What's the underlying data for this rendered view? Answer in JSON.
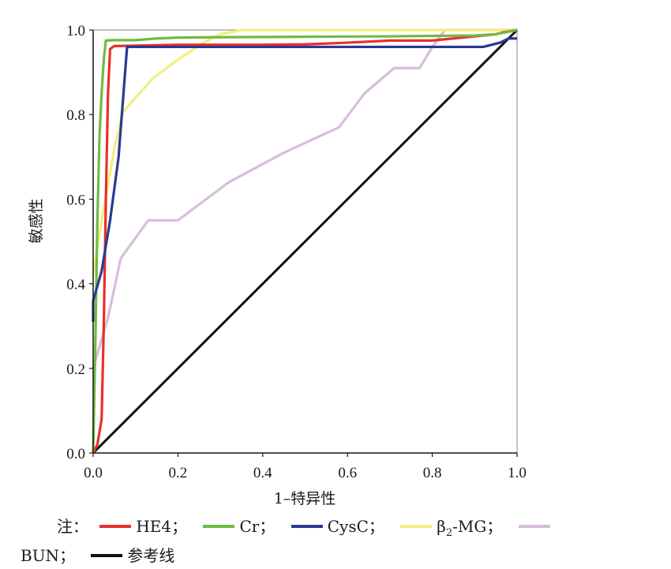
{
  "chart_data": {
    "type": "line",
    "title": "",
    "xlabel": "1–特异性",
    "ylabel": "敏感性",
    "xlim": [
      0,
      1
    ],
    "ylim": [
      0,
      1
    ],
    "xticks": [
      "0.0",
      "0.2",
      "0.4",
      "0.6",
      "0.8",
      "1.0"
    ],
    "yticks": [
      "0.0",
      "0.2",
      "0.4",
      "0.6",
      "0.8",
      "1.0"
    ],
    "grid": false,
    "legend_position": "bottom",
    "series": [
      {
        "name": "HE4",
        "color": "#e8302a",
        "x": [
          0,
          0.01,
          0.02,
          0.025,
          0.03,
          0.035,
          0.04,
          0.05,
          0.1,
          0.2,
          0.4,
          0.5,
          0.6,
          0.7,
          0.8,
          0.9,
          0.95,
          0.97,
          1.0
        ],
        "y": [
          0,
          0.02,
          0.08,
          0.3,
          0.6,
          0.85,
          0.955,
          0.962,
          0.963,
          0.965,
          0.965,
          0.966,
          0.97,
          0.975,
          0.975,
          0.985,
          0.99,
          0.995,
          1.0
        ]
      },
      {
        "name": "Cr",
        "color": "#6fbb44",
        "x": [
          0,
          0.005,
          0.01,
          0.015,
          0.02,
          0.025,
          0.03,
          0.05,
          0.1,
          0.15,
          0.2,
          0.3,
          0.5,
          0.7,
          0.9,
          0.95,
          1.0
        ],
        "y": [
          0,
          0.25,
          0.55,
          0.75,
          0.85,
          0.93,
          0.975,
          0.976,
          0.976,
          0.98,
          0.982,
          0.983,
          0.984,
          0.985,
          0.987,
          0.99,
          1.0
        ]
      },
      {
        "name": "CysC",
        "color": "#2b3990",
        "x": [
          0,
          0.0,
          0.02,
          0.04,
          0.06,
          0.08,
          0.1,
          0.3,
          0.5,
          0.7,
          0.9,
          0.92,
          0.96,
          0.98,
          1.0
        ],
        "y": [
          0.31,
          0.36,
          0.43,
          0.55,
          0.7,
          0.96,
          0.96,
          0.96,
          0.96,
          0.96,
          0.96,
          0.96,
          0.97,
          0.98,
          0.98
        ]
      },
      {
        "name": "β₂-MG",
        "color": "#f3ee7e",
        "x": [
          0,
          0.02,
          0.05,
          0.07,
          0.1,
          0.14,
          0.2,
          0.26,
          0.3,
          0.35,
          0.5,
          0.8,
          1.0
        ],
        "y": [
          0.42,
          0.55,
          0.72,
          0.805,
          0.84,
          0.885,
          0.93,
          0.97,
          0.99,
          1.0,
          1.0,
          1.0,
          1.0
        ]
      },
      {
        "name": "BUN",
        "color": "#d7bddc",
        "x": [
          0,
          0.035,
          0.065,
          0.13,
          0.2,
          0.32,
          0.45,
          0.58,
          0.64,
          0.71,
          0.77,
          0.8,
          0.83,
          1.0
        ],
        "y": [
          0.2,
          0.32,
          0.46,
          0.55,
          0.55,
          0.64,
          0.71,
          0.77,
          0.85,
          0.91,
          0.91,
          0.96,
          1.0,
          1.0
        ]
      },
      {
        "name": "参考线",
        "color": "#111111",
        "x": [
          0,
          1
        ],
        "y": [
          0,
          1
        ]
      }
    ]
  },
  "legend": {
    "prefix": "注：",
    "sep": "；",
    "items": [
      {
        "label": "HE4",
        "color": "#e8302a"
      },
      {
        "label": "Cr",
        "color": "#6fbb44"
      },
      {
        "label": "CysC",
        "color": "#2b3990"
      },
      {
        "label_main": "β",
        "label_sub": "2",
        "label_tail": "-MG",
        "color": "#f3ee7e"
      },
      {
        "label": "BUN",
        "color": "#d7bddc"
      },
      {
        "label": "参考线",
        "color": "#111111"
      }
    ]
  }
}
